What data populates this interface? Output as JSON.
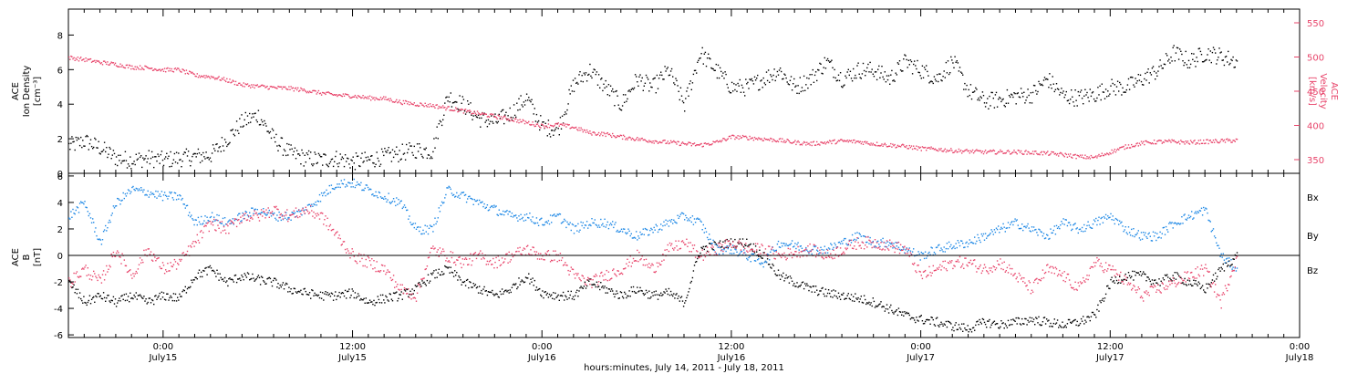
{
  "colors": {
    "axis": "#000000",
    "density": "#000000",
    "velocity": "#e8456b",
    "bx": "#000000",
    "by": "#1e88e5",
    "bz": "#e8456b"
  },
  "footer": {
    "xlabel": "hours:minutes, July 14, 2011 - July 18, 2011"
  },
  "chart_data": [
    {
      "type": "scatter",
      "panel": "top",
      "left_axis": {
        "label_lines": [
          "ACE",
          "Ion Density",
          "[cm⁻³]"
        ],
        "ylim": [
          0,
          9.5
        ],
        "ticks": [
          0,
          2,
          4,
          6,
          8
        ]
      },
      "right_axis": {
        "label_lines": [
          "ACE",
          "Velocity",
          "[km/s]"
        ],
        "ylim": [
          330,
          570
        ],
        "ticks": [
          350,
          400,
          450,
          500,
          550
        ]
      },
      "x_axis": {
        "unit": "hours since July 14, 2011 18:00",
        "xlim": [
          0,
          78
        ],
        "major_ticks": [
          {
            "x": 6,
            "time": "0:00",
            "date": "July15"
          },
          {
            "x": 18,
            "time": "12:00",
            "date": "July15"
          },
          {
            "x": 30,
            "time": "0:00",
            "date": "July16"
          },
          {
            "x": 42,
            "time": "12:00",
            "date": "July16"
          },
          {
            "x": 54,
            "time": "0:00",
            "date": "July17"
          },
          {
            "x": 66,
            "time": "12:00",
            "date": "July17"
          },
          {
            "x": 78,
            "time": "0:00",
            "date": "July18"
          }
        ]
      },
      "series": [
        {
          "key": "density",
          "axis": "left",
          "x": [
            0,
            1,
            2,
            3,
            4,
            5,
            6,
            7,
            8,
            9,
            10,
            11,
            12,
            13,
            14,
            15,
            16,
            17,
            18,
            19,
            20,
            21,
            22,
            23,
            24,
            25,
            26,
            27,
            28,
            29,
            30,
            31,
            32,
            33,
            34,
            35,
            36,
            37,
            38,
            39,
            40,
            41,
            42,
            43,
            44,
            45,
            46,
            47,
            48,
            49,
            50,
            51,
            52,
            53,
            54,
            55,
            56,
            57,
            58,
            59,
            60,
            61,
            62,
            63,
            64,
            65,
            66,
            67,
            68,
            69,
            70,
            71,
            72,
            73,
            74
          ],
          "y": [
            1.6,
            1.9,
            1.5,
            0.9,
            0.8,
            0.9,
            0.8,
            0.9,
            1.0,
            1.1,
            2.0,
            3.0,
            3.4,
            2.0,
            1.2,
            0.9,
            0.8,
            0.9,
            0.7,
            0.8,
            1.0,
            1.2,
            1.4,
            1.3,
            4.5,
            4.0,
            3.2,
            3.0,
            3.5,
            4.4,
            2.7,
            2.6,
            5.2,
            6.0,
            5.0,
            4.0,
            5.5,
            5.0,
            6.0,
            4.0,
            7.0,
            6.0,
            5.0,
            5.0,
            5.5,
            6.0,
            5.0,
            5.5,
            6.5,
            5.5,
            6.0,
            6.0,
            5.5,
            6.5,
            6.0,
            5.5,
            6.5,
            4.8,
            4.2,
            4.3,
            4.5,
            4.6,
            5.5,
            4.5,
            4.4,
            4.6,
            5.0,
            5.0,
            5.5,
            6.0,
            7.0,
            6.5,
            7.0,
            6.8,
            6.5
          ]
        },
        {
          "key": "velocity",
          "axis": "right",
          "x": [
            0,
            1,
            2,
            3,
            4,
            5,
            6,
            7,
            8,
            9,
            10,
            11,
            12,
            13,
            14,
            15,
            16,
            17,
            18,
            19,
            20,
            21,
            22,
            23,
            24,
            25,
            26,
            27,
            28,
            29,
            30,
            31,
            32,
            33,
            34,
            35,
            36,
            37,
            38,
            39,
            40,
            41,
            42,
            43,
            44,
            45,
            46,
            47,
            48,
            49,
            50,
            51,
            52,
            53,
            54,
            55,
            56,
            57,
            58,
            59,
            60,
            61,
            62,
            63,
            64,
            65,
            66,
            67,
            68,
            69,
            70,
            71,
            72,
            73,
            74
          ],
          "y": [
            500,
            497,
            493,
            490,
            486,
            485,
            482,
            482,
            474,
            472,
            467,
            460,
            458,
            456,
            455,
            452,
            448,
            445,
            444,
            441,
            440,
            435,
            432,
            430,
            426,
            422,
            418,
            414,
            410,
            405,
            400,
            402,
            398,
            390,
            388,
            384,
            381,
            378,
            376,
            374,
            372,
            376,
            384,
            383,
            381,
            379,
            376,
            374,
            376,
            378,
            377,
            374,
            372,
            370,
            367,
            366,
            364,
            363,
            362,
            362,
            362,
            361,
            360,
            358,
            355,
            354,
            362,
            370,
            375,
            377,
            377,
            376,
            377,
            378,
            379
          ]
        }
      ]
    },
    {
      "type": "scatter",
      "panel": "bottom",
      "left_axis": {
        "label_lines": [
          "ACE",
          "B",
          "[nT]"
        ],
        "ylim": [
          -6.2,
          6.2
        ],
        "ticks": [
          -6,
          -4,
          -2,
          0,
          2,
          4,
          6
        ]
      },
      "zero_line": true,
      "x_axis": {
        "unit": "hours since July 14, 2011 18:00",
        "xlim": [
          0,
          78
        ]
      },
      "legend_position": "right",
      "series": [
        {
          "key": "bx",
          "name": "Bx",
          "x": [
            0,
            1,
            2,
            3,
            4,
            5,
            6,
            7,
            8,
            9,
            10,
            11,
            12,
            13,
            14,
            15,
            16,
            17,
            18,
            19,
            20,
            21,
            22,
            23,
            24,
            25,
            26,
            27,
            28,
            29,
            30,
            31,
            32,
            33,
            34,
            35,
            36,
            37,
            38,
            39,
            40,
            41,
            42,
            43,
            44,
            45,
            46,
            47,
            48,
            49,
            50,
            51,
            52,
            53,
            54,
            55,
            56,
            57,
            58,
            59,
            60,
            61,
            62,
            63,
            64,
            65,
            66,
            67,
            68,
            69,
            70,
            71,
            72,
            73,
            74
          ],
          "y": [
            -2.0,
            -3.5,
            -3.0,
            -3.5,
            -3.0,
            -3.5,
            -3.0,
            -3.2,
            -1.5,
            -1.0,
            -2.0,
            -1.5,
            -1.8,
            -2.0,
            -2.5,
            -2.8,
            -3.0,
            -3.0,
            -2.8,
            -3.5,
            -3.2,
            -3.0,
            -2.5,
            -1.5,
            -1.0,
            -2.0,
            -2.5,
            -3.0,
            -2.5,
            -1.5,
            -2.8,
            -3.0,
            -3.0,
            -2.0,
            -2.5,
            -3.0,
            -2.5,
            -3.0,
            -2.8,
            -3.5,
            0.5,
            0.8,
            1.0,
            1.0,
            0.0,
            -1.5,
            -2.0,
            -2.5,
            -2.8,
            -3.0,
            -3.2,
            -3.5,
            -4.0,
            -4.5,
            -4.8,
            -5.0,
            -5.3,
            -5.5,
            -5.0,
            -5.2,
            -5.0,
            -4.8,
            -5.0,
            -5.2,
            -5.0,
            -4.5,
            -2.0,
            -1.5,
            -1.5,
            -2.0,
            -1.5,
            -2.0,
            -2.5,
            -1.0,
            0.0
          ]
        },
        {
          "key": "by",
          "name": "By",
          "x": [
            0,
            1,
            2,
            3,
            4,
            5,
            6,
            7,
            8,
            9,
            10,
            11,
            12,
            13,
            14,
            15,
            16,
            17,
            18,
            19,
            20,
            21,
            22,
            23,
            24,
            25,
            26,
            27,
            28,
            29,
            30,
            31,
            32,
            33,
            34,
            35,
            36,
            37,
            38,
            39,
            40,
            41,
            42,
            43,
            44,
            45,
            46,
            47,
            48,
            49,
            50,
            51,
            52,
            53,
            54,
            55,
            56,
            57,
            58,
            59,
            60,
            61,
            62,
            63,
            64,
            65,
            66,
            67,
            68,
            69,
            70,
            71,
            72,
            73,
            74
          ],
          "y": [
            3.0,
            4.0,
            1.0,
            4.0,
            5.0,
            4.8,
            4.5,
            4.5,
            2.5,
            3.0,
            2.5,
            3.0,
            3.5,
            3.0,
            3.0,
            3.5,
            4.5,
            5.5,
            5.5,
            5.0,
            4.5,
            4.0,
            2.0,
            2.0,
            5.0,
            4.5,
            4.0,
            3.5,
            3.0,
            3.0,
            2.5,
            3.0,
            2.0,
            2.5,
            2.5,
            2.0,
            1.5,
            2.0,
            2.5,
            3.0,
            2.5,
            0.5,
            0.5,
            0.0,
            -0.5,
            1.0,
            0.8,
            0.5,
            0.5,
            1.0,
            1.5,
            1.0,
            1.0,
            0.5,
            0.0,
            0.5,
            0.8,
            1.0,
            1.5,
            2.0,
            2.5,
            2.0,
            1.5,
            2.5,
            2.0,
            2.5,
            3.0,
            2.0,
            1.5,
            1.5,
            2.5,
            3.0,
            3.5,
            0.0,
            -1.0
          ]
        },
        {
          "key": "bz",
          "name": "Bz",
          "x": [
            0,
            1,
            2,
            3,
            4,
            5,
            6,
            7,
            8,
            9,
            10,
            11,
            12,
            13,
            14,
            15,
            16,
            17,
            18,
            19,
            20,
            21,
            22,
            23,
            24,
            25,
            26,
            27,
            28,
            29,
            30,
            31,
            32,
            33,
            34,
            35,
            36,
            37,
            38,
            39,
            40,
            41,
            42,
            43,
            44,
            45,
            46,
            47,
            48,
            49,
            50,
            51,
            52,
            53,
            54,
            55,
            56,
            57,
            58,
            59,
            60,
            61,
            62,
            63,
            64,
            65,
            66,
            67,
            68,
            69,
            70,
            71,
            72,
            73,
            74
          ],
          "y": [
            -2.0,
            -1.0,
            -2.0,
            0.5,
            -1.5,
            0.5,
            -1.0,
            -0.5,
            1.0,
            2.5,
            2.0,
            3.0,
            3.0,
            3.5,
            3.0,
            3.5,
            3.0,
            1.5,
            0.0,
            -0.5,
            -1.0,
            -2.5,
            -3.0,
            0.5,
            0.0,
            -0.5,
            0.0,
            -0.5,
            0.0,
            0.5,
            0.0,
            0.0,
            -1.5,
            -2.0,
            -1.5,
            -1.0,
            0.0,
            -1.0,
            0.5,
            1.0,
            0.0,
            0.5,
            1.0,
            0.5,
            0.5,
            0.0,
            0.3,
            0.5,
            0.0,
            0.5,
            1.0,
            1.0,
            0.8,
            0.5,
            -1.5,
            -1.0,
            -0.5,
            -0.5,
            -1.0,
            -0.5,
            -1.5,
            -2.5,
            -1.0,
            -1.5,
            -2.5,
            -0.5,
            -1.0,
            -2.0,
            -3.0,
            -2.5,
            -2.0,
            -1.5,
            -1.0,
            -3.5,
            0.0
          ]
        }
      ]
    }
  ]
}
